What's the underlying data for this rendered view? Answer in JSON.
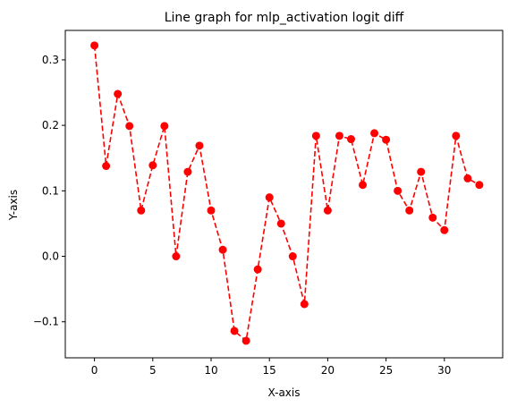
{
  "chart_data": {
    "type": "line",
    "title": "Line graph for mlp_activation logit diff",
    "xlabel": "X-axis",
    "ylabel": "Y-axis",
    "xlim": [
      -2.5,
      35.0
    ],
    "ylim": [
      -0.155,
      0.345
    ],
    "xticks": [
      0,
      5,
      10,
      15,
      20,
      25,
      30
    ],
    "xtick_labels": [
      "0",
      "5",
      "10",
      "15",
      "20",
      "25",
      "30"
    ],
    "yticks": [
      -0.1,
      0.0,
      0.1,
      0.2,
      0.3
    ],
    "ytick_labels": [
      "−0.1",
      "0.0",
      "0.1",
      "0.2",
      "0.3"
    ],
    "grid": false,
    "series": [
      {
        "color": "#ff0000",
        "linestyle": "dashed",
        "marker": "circle",
        "x": [
          0,
          1,
          2,
          3,
          4,
          5,
          6,
          7,
          8,
          9,
          10,
          11,
          12,
          13,
          14,
          15,
          16,
          17,
          18,
          19,
          20,
          21,
          22,
          23,
          24,
          25,
          26,
          27,
          28,
          29,
          30,
          31,
          32,
          33
        ],
        "y": [
          0.322,
          0.138,
          0.248,
          0.199,
          0.07,
          0.139,
          0.199,
          0.0,
          0.129,
          0.169,
          0.07,
          0.01,
          -0.114,
          -0.129,
          -0.02,
          0.09,
          0.05,
          0.0,
          -0.073,
          0.184,
          0.07,
          0.184,
          0.179,
          0.109,
          0.188,
          0.178,
          0.1,
          0.07,
          0.129,
          0.059,
          0.04,
          0.184,
          0.119,
          0.109
        ]
      }
    ]
  }
}
